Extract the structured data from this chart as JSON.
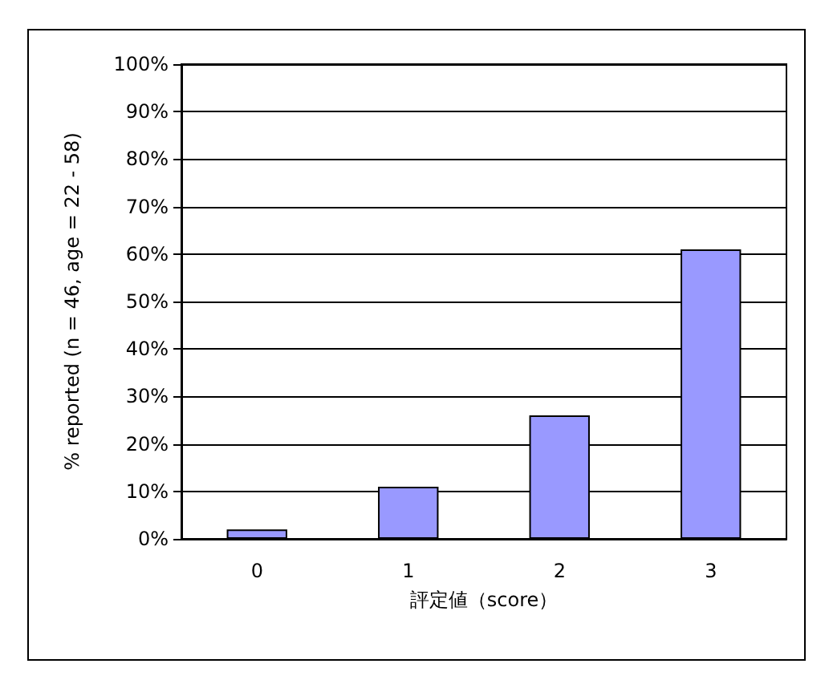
{
  "chart_data": {
    "type": "bar",
    "xlabel": "評定値（score）",
    "ylabel": "% reported (n = 46, age = 22 - 58)",
    "categories": [
      "0",
      "1",
      "2",
      "3"
    ],
    "values": [
      2,
      11,
      26,
      61
    ],
    "color": "#9999ff",
    "ylim": [
      0,
      100
    ],
    "yticks": [
      {
        "value": 0,
        "label": "0%"
      },
      {
        "value": 10,
        "label": "10%"
      },
      {
        "value": 20,
        "label": "20%"
      },
      {
        "value": 30,
        "label": "30%"
      },
      {
        "value": 40,
        "label": "40%"
      },
      {
        "value": 50,
        "label": "50%"
      },
      {
        "value": 60,
        "label": "60%"
      },
      {
        "value": 70,
        "label": "70%"
      },
      {
        "value": 80,
        "label": "80%"
      },
      {
        "value": 90,
        "label": "90%"
      },
      {
        "value": 100,
        "label": "100%"
      }
    ],
    "grid": "y"
  }
}
